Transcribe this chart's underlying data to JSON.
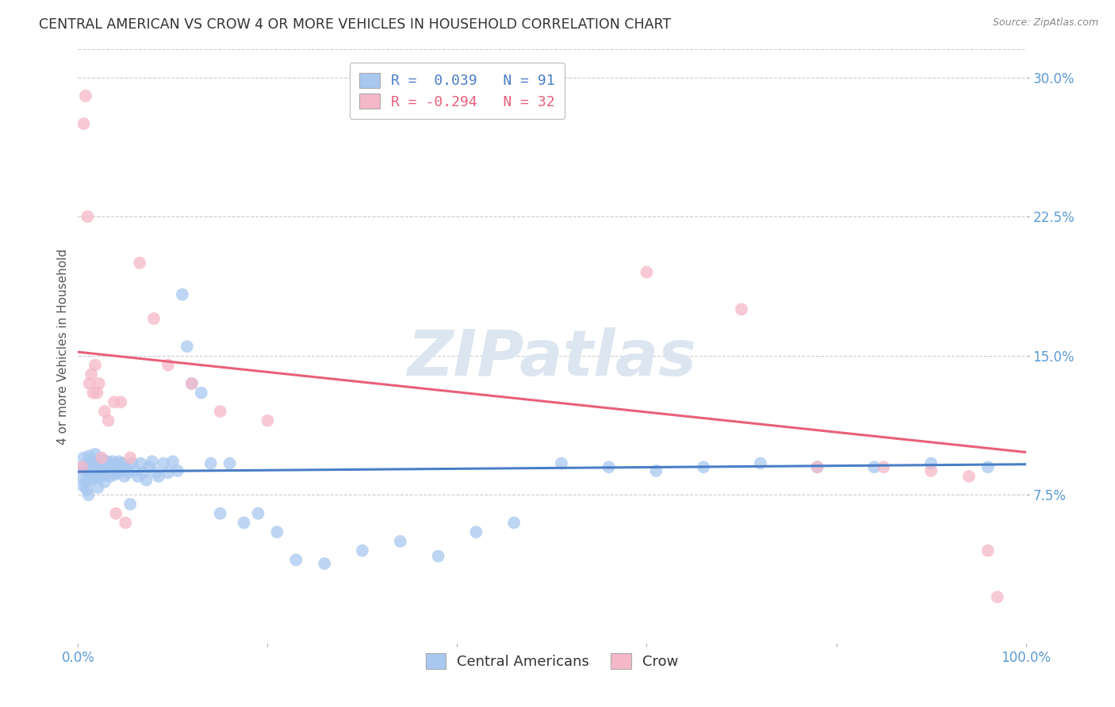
{
  "title": "CENTRAL AMERICAN VS CROW 4 OR MORE VEHICLES IN HOUSEHOLD CORRELATION CHART",
  "source": "Source: ZipAtlas.com",
  "ylabel": "4 or more Vehicles in Household",
  "xlim": [
    0.0,
    1.0
  ],
  "ylim": [
    -0.005,
    0.315
  ],
  "yticks": [
    0.075,
    0.15,
    0.225,
    0.3
  ],
  "yticklabels": [
    "7.5%",
    "15.0%",
    "22.5%",
    "30.0%"
  ],
  "xtick_positions": [
    0.0,
    1.0
  ],
  "xticklabels": [
    "0.0%",
    "100.0%"
  ],
  "blue_color": "#A8C8F0",
  "pink_color": "#F5B8C8",
  "blue_line_color": "#4A7EC7",
  "pink_line_color": "#E8607A",
  "legend_blue_label": "R =  0.039   N = 91",
  "legend_pink_label": "R = -0.294   N = 32",
  "legend_label_blue": "Central Americans",
  "legend_label_pink": "Crow",
  "watermark": "ZIPatlas",
  "background_color": "#ffffff",
  "blue_scatter_x": [
    0.003,
    0.004,
    0.005,
    0.006,
    0.007,
    0.008,
    0.009,
    0.01,
    0.011,
    0.012,
    0.012,
    0.013,
    0.014,
    0.015,
    0.015,
    0.016,
    0.017,
    0.018,
    0.018,
    0.019,
    0.02,
    0.021,
    0.021,
    0.022,
    0.023,
    0.024,
    0.025,
    0.026,
    0.027,
    0.028,
    0.029,
    0.03,
    0.031,
    0.032,
    0.033,
    0.034,
    0.035,
    0.036,
    0.037,
    0.038,
    0.039,
    0.04,
    0.041,
    0.042,
    0.043,
    0.045,
    0.047,
    0.049,
    0.051,
    0.053,
    0.055,
    0.057,
    0.06,
    0.063,
    0.066,
    0.069,
    0.072,
    0.075,
    0.078,
    0.082,
    0.085,
    0.09,
    0.095,
    0.1,
    0.105,
    0.11,
    0.115,
    0.12,
    0.13,
    0.14,
    0.15,
    0.16,
    0.175,
    0.19,
    0.21,
    0.23,
    0.26,
    0.3,
    0.34,
    0.38,
    0.42,
    0.46,
    0.51,
    0.56,
    0.61,
    0.66,
    0.72,
    0.78,
    0.84,
    0.9,
    0.96
  ],
  "blue_scatter_y": [
    0.09,
    0.085,
    0.08,
    0.095,
    0.088,
    0.082,
    0.078,
    0.092,
    0.075,
    0.088,
    0.096,
    0.091,
    0.083,
    0.087,
    0.093,
    0.086,
    0.09,
    0.084,
    0.097,
    0.089,
    0.086,
    0.092,
    0.079,
    0.093,
    0.087,
    0.091,
    0.085,
    0.094,
    0.088,
    0.082,
    0.09,
    0.086,
    0.093,
    0.087,
    0.091,
    0.085,
    0.089,
    0.093,
    0.087,
    0.09,
    0.086,
    0.092,
    0.087,
    0.089,
    0.093,
    0.088,
    0.092,
    0.085,
    0.09,
    0.087,
    0.07,
    0.092,
    0.088,
    0.085,
    0.092,
    0.087,
    0.083,
    0.09,
    0.093,
    0.087,
    0.085,
    0.092,
    0.087,
    0.093,
    0.088,
    0.183,
    0.155,
    0.135,
    0.13,
    0.092,
    0.065,
    0.092,
    0.06,
    0.065,
    0.055,
    0.04,
    0.038,
    0.045,
    0.05,
    0.042,
    0.055,
    0.06,
    0.092,
    0.09,
    0.088,
    0.09,
    0.092,
    0.09,
    0.09,
    0.092,
    0.09
  ],
  "pink_scatter_x": [
    0.004,
    0.006,
    0.008,
    0.01,
    0.012,
    0.014,
    0.016,
    0.018,
    0.02,
    0.022,
    0.025,
    0.028,
    0.032,
    0.038,
    0.045,
    0.055,
    0.065,
    0.08,
    0.095,
    0.12,
    0.15,
    0.2,
    0.6,
    0.7,
    0.78,
    0.85,
    0.9,
    0.94,
    0.96,
    0.97,
    0.05,
    0.04
  ],
  "pink_scatter_y": [
    0.09,
    0.275,
    0.29,
    0.225,
    0.135,
    0.14,
    0.13,
    0.145,
    0.13,
    0.135,
    0.095,
    0.12,
    0.115,
    0.125,
    0.125,
    0.095,
    0.2,
    0.17,
    0.145,
    0.135,
    0.12,
    0.115,
    0.195,
    0.175,
    0.09,
    0.09,
    0.088,
    0.085,
    0.045,
    0.02,
    0.06,
    0.065
  ],
  "blue_trend_y_start": 0.0875,
  "blue_trend_y_end": 0.0915,
  "pink_trend_y_start": 0.152,
  "pink_trend_y_end": 0.098,
  "grid_color": "#cccccc",
  "title_color": "#333333",
  "axis_label_color": "#555555",
  "tick_color": "#5B9BD5",
  "watermark_color": "#dce6f0",
  "title_fontsize": 12.5,
  "axis_label_fontsize": 11,
  "tick_fontsize": 12,
  "legend_fontsize": 13
}
